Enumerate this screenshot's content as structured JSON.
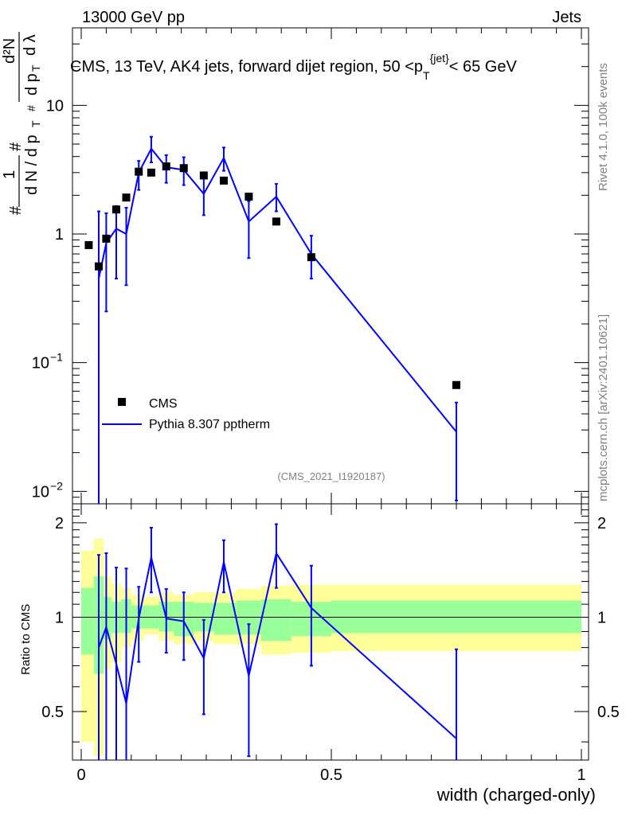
{
  "header": {
    "energy": "13000 GeV pp",
    "category": "Jets"
  },
  "side": {
    "rivet": "Rivet 4.1.0,  100k events",
    "mcplots": "mcplots.cern.ch [arXiv:2401.10621]"
  },
  "colors": {
    "mc": "#0000ff",
    "data": "#000000",
    "band_inner": "#99ff99",
    "band_outer": "#ffff99"
  },
  "chart_data": {
    "type": "scatter",
    "title": "CMS, 13 TeV, AK4 jets, forward dijet region, 50 <p_T^{jet}< 65 GeV",
    "analysis_tag": "(CMS_2021_I1920187)",
    "xlabel": "width (charged-only)",
    "ylabel": "1/dN/dp_T · d²N/dp_T dλ",
    "ratio_ylabel": "Ratio to CMS",
    "xlim": [
      0,
      1
    ],
    "ylim": [
      0.008,
      40
    ],
    "yscale": "log",
    "ratio_ylim": [
      0.35,
      2.3
    ],
    "x_ticks": [
      "0",
      "0.5",
      "1"
    ],
    "y_ticks": [
      {
        "v": 10,
        "label": "10"
      },
      {
        "v": 1,
        "label": "1"
      },
      {
        "v": 0.1,
        "base": "10",
        "exp": "−1"
      },
      {
        "v": 0.01,
        "base": "10",
        "exp": "−2"
      }
    ],
    "ratio_ticks": [
      {
        "v": 0.5,
        "label": "0.5"
      },
      {
        "v": 1,
        "label": "1"
      },
      {
        "v": 2,
        "label": "2"
      }
    ],
    "legend": [
      "CMS",
      "Pythia 8.307 pptherm"
    ],
    "data_series": {
      "name": "CMS",
      "x": [
        0.015,
        0.035,
        0.05,
        0.07,
        0.09,
        0.115,
        0.14,
        0.17,
        0.205,
        0.245,
        0.285,
        0.335,
        0.39,
        0.46,
        0.75
      ],
      "y": [
        0.82,
        0.56,
        0.92,
        1.55,
        1.92,
        3.05,
        3.0,
        3.35,
        3.25,
        2.85,
        2.6,
        1.95,
        1.25,
        0.66,
        0.067
      ]
    },
    "mc_series": {
      "name": "Pythia 8.307 pptherm",
      "x": [
        0.035,
        0.05,
        0.07,
        0.09,
        0.115,
        0.14,
        0.17,
        0.205,
        0.245,
        0.285,
        0.335,
        0.39,
        0.46,
        0.75
      ],
      "y": [
        0.45,
        0.85,
        1.1,
        1.0,
        3.0,
        4.6,
        3.3,
        3.15,
        2.05,
        3.9,
        1.25,
        1.95,
        0.7,
        0.029
      ],
      "y_lo": [
        0.006,
        0.25,
        0.45,
        0.4,
        2.2,
        3.6,
        2.5,
        2.4,
        1.4,
        3.1,
        0.65,
        1.5,
        0.45,
        0.0085
      ],
      "y_hi": [
        1.5,
        1.45,
        1.65,
        1.6,
        3.7,
        5.7,
        4.1,
        3.95,
        2.7,
        4.7,
        1.8,
        2.45,
        0.97,
        0.049
      ]
    },
    "ratio_series": {
      "x": [
        0.035,
        0.05,
        0.07,
        0.09,
        0.115,
        0.14,
        0.17,
        0.205,
        0.245,
        0.285,
        0.335,
        0.39,
        0.46,
        0.75
      ],
      "y": [
        0.8,
        0.93,
        0.71,
        0.53,
        0.99,
        1.55,
        0.99,
        0.97,
        0.74,
        1.5,
        0.65,
        1.6,
        1.07,
        0.41
      ],
      "y_lo": [
        0.3,
        0.3,
        0.3,
        0.3,
        0.72,
        1.2,
        0.77,
        0.73,
        0.49,
        1.2,
        0.36,
        1.24,
        0.7,
        0.33
      ],
      "y_hi": [
        1.58,
        1.6,
        1.44,
        1.43,
        1.25,
        1.93,
        1.23,
        1.2,
        0.98,
        1.76,
        0.95,
        1.98,
        1.46,
        0.79
      ]
    },
    "bands": {
      "edges": [
        0,
        0.025,
        0.045,
        0.06,
        0.08,
        0.1,
        0.125,
        0.155,
        0.185,
        0.225,
        0.265,
        0.31,
        0.36,
        0.42,
        0.5,
        1.0
      ],
      "inner_lo": [
        0.76,
        0.66,
        0.85,
        0.89,
        0.89,
        0.92,
        0.92,
        0.9,
        0.87,
        0.9,
        0.88,
        0.88,
        0.84,
        0.87,
        0.89
      ],
      "inner_hi": [
        1.24,
        1.35,
        1.16,
        1.12,
        1.14,
        1.09,
        1.09,
        1.12,
        1.12,
        1.11,
        1.11,
        1.13,
        1.14,
        1.12,
        1.13
      ],
      "outer_lo": [
        0.4,
        0.36,
        0.68,
        0.72,
        0.8,
        0.84,
        0.88,
        0.84,
        0.82,
        0.84,
        0.82,
        0.82,
        0.76,
        0.77,
        0.78
      ],
      "outer_hi": [
        1.63,
        1.78,
        1.35,
        1.28,
        1.24,
        1.18,
        1.16,
        1.2,
        1.18,
        1.2,
        1.2,
        1.23,
        1.26,
        1.27,
        1.27
      ]
    }
  }
}
